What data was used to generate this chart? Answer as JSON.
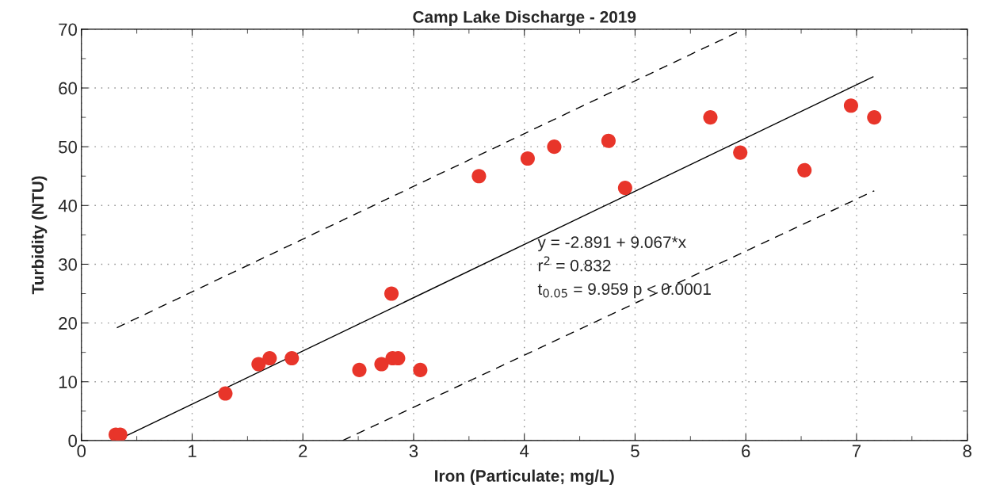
{
  "chart_data": {
    "type": "scatter",
    "title": "Camp Lake Discharge - 2019",
    "xlabel": "Iron (Particulate; mg/L)",
    "ylabel": "Turbidity (NTU)",
    "series": [
      {
        "color": "#e8352a",
        "marker": "circle",
        "x": [
          0.31,
          0.35,
          1.3,
          1.6,
          1.7,
          1.9,
          2.51,
          2.71,
          2.8,
          2.81,
          2.86,
          3.06,
          3.59,
          4.03,
          4.27,
          4.76,
          4.91,
          5.68,
          5.95,
          6.53,
          6.95,
          7.16
        ],
        "values": [
          1,
          1,
          8,
          13,
          14,
          14,
          12,
          13,
          25,
          14,
          14,
          12,
          45,
          48,
          50,
          51,
          43,
          55,
          49,
          46,
          57,
          55
        ]
      },
      {
        "type": "line",
        "color": "#000000",
        "line_style": "solid",
        "marker": "none",
        "x": [
          0.35,
          7.15
        ],
        "values": [
          0.3,
          61.9
        ]
      },
      {
        "type": "line",
        "color": "#000000",
        "line_style": "dashed",
        "marker": "none",
        "x": [
          0.32,
          5.98
        ],
        "values": [
          19.2,
          70
        ]
      },
      {
        "type": "line",
        "color": "#000000",
        "line_style": "dashed",
        "marker": "none",
        "x": [
          2.36,
          7.16
        ],
        "values": [
          0,
          42.5
        ]
      }
    ],
    "annotations": [
      "y = -2.891 + 9.067*x",
      "r$^{2}$ = 0.832",
      "t$_{0.05}$ = 9.959 p < 0.0001"
    ],
    "xlim": [
      0,
      8
    ],
    "xticks": [
      0,
      1,
      2,
      3,
      4,
      5,
      6,
      7,
      8
    ],
    "ylim": [
      0,
      70
    ],
    "yticks": [
      0,
      10,
      20,
      30,
      40,
      50,
      60,
      70
    ],
    "grid": true,
    "legend": false
  }
}
